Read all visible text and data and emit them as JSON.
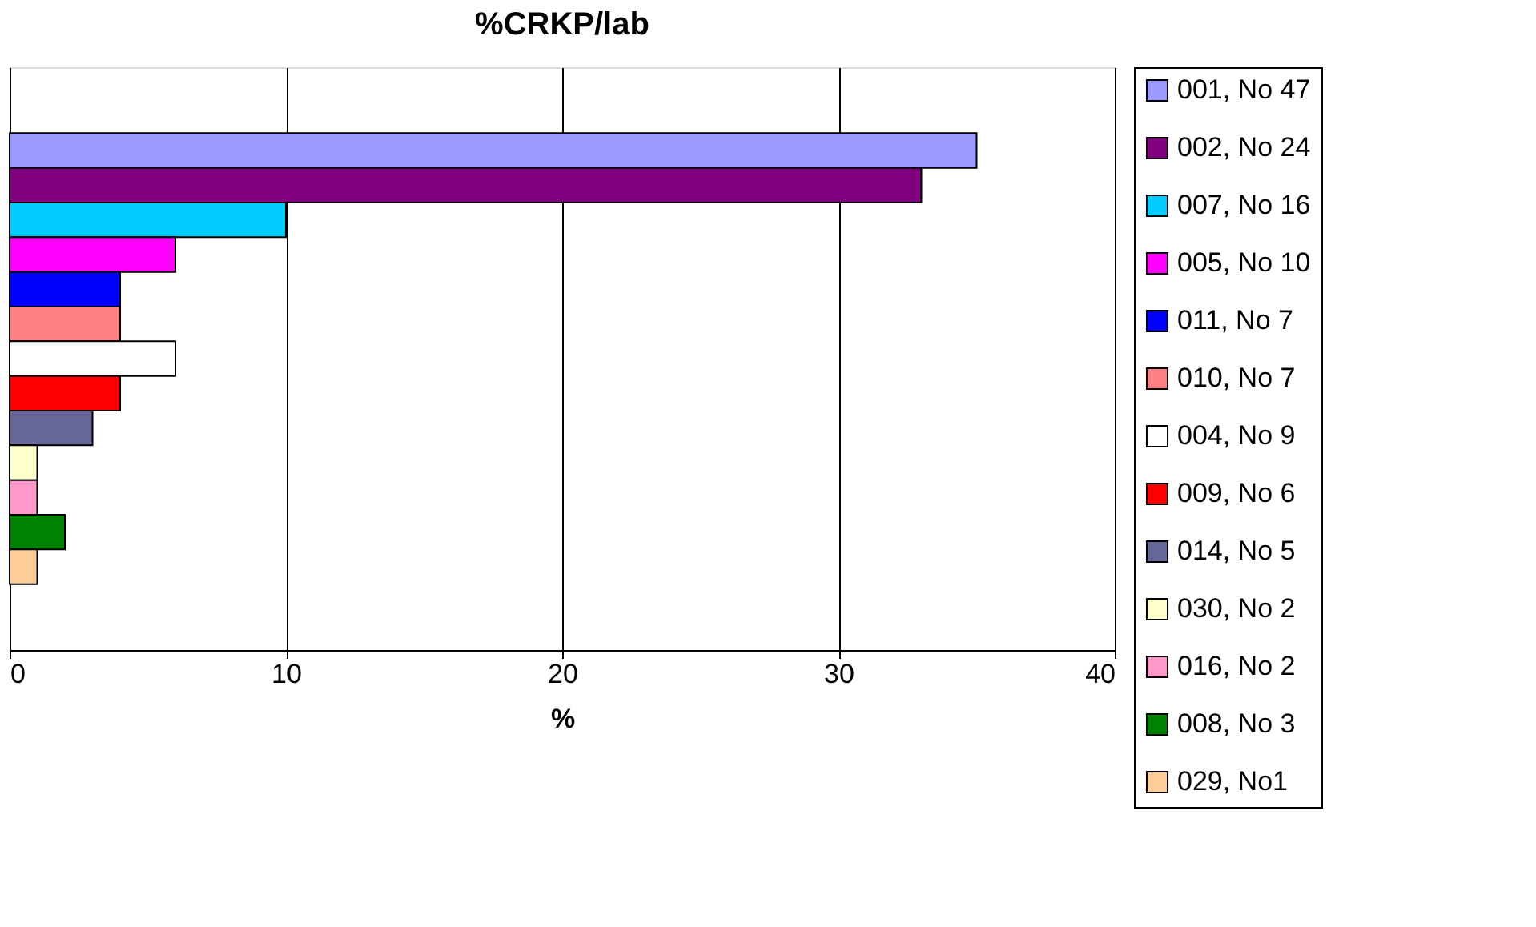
{
  "chart_data": {
    "type": "bar",
    "orientation": "horizontal",
    "title": "%CRKP/lab",
    "xlabel": "%",
    "categories": [
      null
    ],
    "xlim": [
      0,
      40
    ],
    "xticks": [
      0,
      10,
      20,
      30,
      40
    ],
    "grid": "x",
    "legend": "right",
    "series": [
      {
        "name": "001, No 47",
        "color": "#9999ff",
        "values": [
          35
        ]
      },
      {
        "name": "002, No 24",
        "color": "#800080",
        "values": [
          33
        ]
      },
      {
        "name": "007, No 16",
        "color": "#00ccff",
        "values": [
          10
        ]
      },
      {
        "name": "005, No 10",
        "color": "#ff00ff",
        "values": [
          6
        ]
      },
      {
        "name": "011, No 7",
        "color": "#0000ff",
        "values": [
          4
        ]
      },
      {
        "name": "010, No 7",
        "color": "#ff8080",
        "values": [
          4
        ]
      },
      {
        "name": "004, No 9",
        "color": "#ffffff",
        "values": [
          6
        ]
      },
      {
        "name": "009, No 6",
        "color": "#ff0000",
        "values": [
          4
        ]
      },
      {
        "name": "014, No 5",
        "color": "#666699",
        "values": [
          3
        ]
      },
      {
        "name": "030, No 2",
        "color": "#ffffcc",
        "values": [
          1
        ]
      },
      {
        "name": "016, No 2",
        "color": "#ff99cc",
        "values": [
          1
        ]
      },
      {
        "name": "008, No 3",
        "color": "#008000",
        "values": [
          2
        ]
      },
      {
        "name": "029, No1",
        "color": "#ffcc99",
        "values": [
          1
        ]
      }
    ]
  }
}
